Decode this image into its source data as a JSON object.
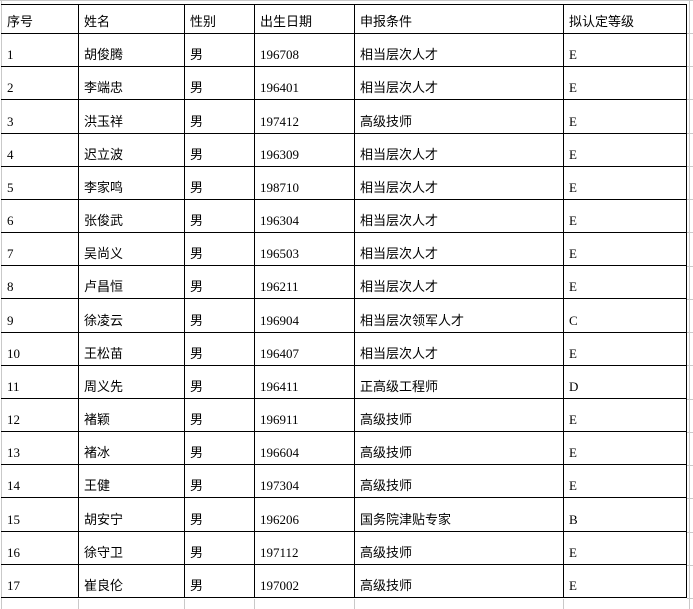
{
  "table": {
    "columns": [
      {
        "key": "index",
        "label": "序号"
      },
      {
        "key": "name",
        "label": "姓名"
      },
      {
        "key": "gender",
        "label": "性别"
      },
      {
        "key": "birthdate",
        "label": "出生日期"
      },
      {
        "key": "condition",
        "label": "申报条件"
      },
      {
        "key": "level",
        "label": "拟认定等级"
      }
    ],
    "rows": [
      [
        "1",
        "胡俊腾",
        "男",
        "196708",
        "相当层次人才",
        "E"
      ],
      [
        "2",
        "李端忠",
        "男",
        "196401",
        "相当层次人才",
        "E"
      ],
      [
        "3",
        "洪玉祥",
        "男",
        "197412",
        "高级技师",
        "E"
      ],
      [
        "4",
        "迟立波",
        "男",
        "196309",
        "相当层次人才",
        "E"
      ],
      [
        "5",
        "李家鸣",
        "男",
        "198710",
        "相当层次人才",
        "E"
      ],
      [
        "6",
        "张俊武",
        "男",
        "196304",
        "相当层次人才",
        "E"
      ],
      [
        "7",
        "吴尚义",
        "男",
        "196503",
        "相当层次人才",
        "E"
      ],
      [
        "8",
        "卢昌恒",
        "男",
        "196211",
        "相当层次人才",
        "E"
      ],
      [
        "9",
        "徐凌云",
        "男",
        "196904",
        "相当层次领军人才",
        "C"
      ],
      [
        "10",
        "王松苗",
        "男",
        "196407",
        "相当层次人才",
        "E"
      ],
      [
        "11",
        "周义先",
        "男",
        "196411",
        "正高级工程师",
        "D"
      ],
      [
        "12",
        "褚颖",
        "男",
        "196911",
        "高级技师",
        "E"
      ],
      [
        "13",
        "褚冰",
        "男",
        "196604",
        "高级技师",
        "E"
      ],
      [
        "14",
        "王健",
        "男",
        "197304",
        "高级技师",
        "E"
      ],
      [
        "15",
        "胡安宁",
        "男",
        "196206",
        "国务院津贴专家",
        "B"
      ],
      [
        "16",
        "徐守卫",
        "男",
        "197112",
        "高级技师",
        "E"
      ],
      [
        "17",
        "崔良伦",
        "男",
        "197002",
        "高级技师",
        "E"
      ]
    ]
  },
  "colors": {
    "border": "#000000",
    "gridline": "#c9c9c9",
    "background": "#ffffff",
    "text": "#000000"
  }
}
